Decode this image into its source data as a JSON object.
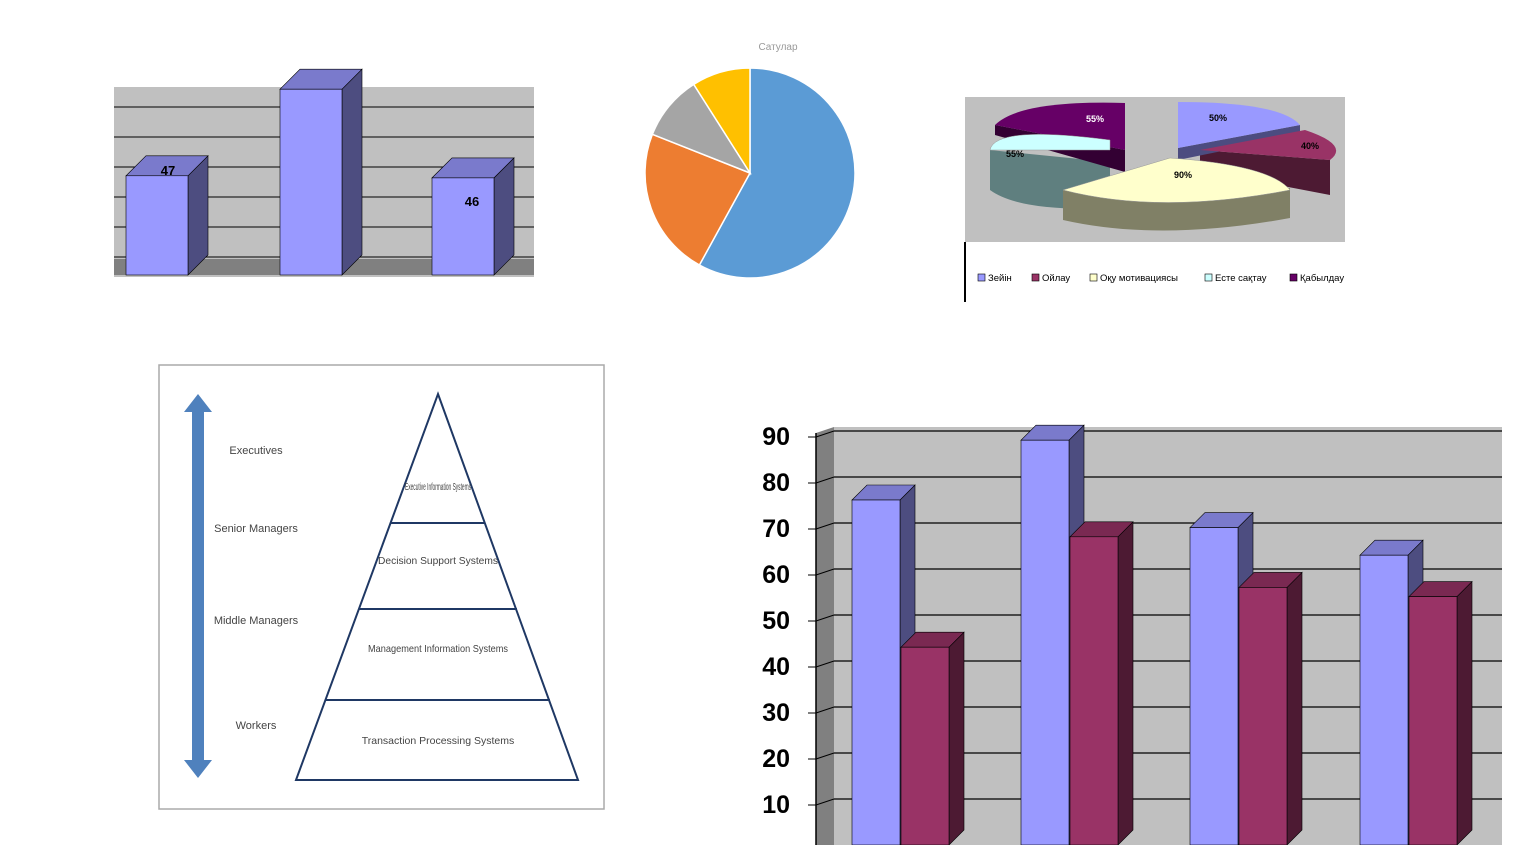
{
  "chart_data": [
    {
      "type": "bar",
      "series": [
        {
          "values": [
            47,
            88,
            46
          ]
        }
      ],
      "data_labels": [
        "47",
        "",
        "46"
      ],
      "style": "3d-column",
      "grid": true
    },
    {
      "type": "pie",
      "title": "Сатулар",
      "slices": [
        {
          "value": 58,
          "color": "#5b9bd5"
        },
        {
          "value": 23,
          "color": "#ed7d31"
        },
        {
          "value": 10,
          "color": "#a5a5a5"
        },
        {
          "value": 9,
          "color": "#ffc000"
        }
      ]
    },
    {
      "type": "pie",
      "style": "3d-exploded",
      "categories": [
        "Зейін",
        "Ойлау",
        "Оқу мотивациясы",
        "Есте сақтау",
        "Қабылдау"
      ],
      "values": [
        50,
        40,
        90,
        55,
        55
      ],
      "data_labels": [
        "50%",
        "40%",
        "90%",
        "55%",
        "55%"
      ],
      "colors": [
        "#9999ff",
        "#993366",
        "#ffffcc",
        "#ccffff",
        "#660066"
      ],
      "legend": "bottom"
    },
    {
      "type": "bar",
      "style": "3d-column",
      "categories": [
        "",
        "",
        "",
        ""
      ],
      "series": [
        {
          "values": [
            75,
            88,
            69,
            63
          ],
          "color": "#9999ff"
        },
        {
          "values": [
            43,
            67,
            56,
            54
          ],
          "color": "#993366"
        }
      ],
      "yticks": [
        "90",
        "80",
        "70",
        "60",
        "50",
        "40",
        "30",
        "20",
        "10"
      ],
      "ylim": [
        0,
        90
      ],
      "grid": true
    }
  ],
  "diagram": {
    "levels": [
      "Executives",
      "Senior Managers",
      "Middle Managers",
      "Workers"
    ],
    "systems": [
      "Executive Information Systems",
      "Decision Support Systems",
      "Management Information Systems",
      "Transaction Processing Systems"
    ]
  },
  "colors": {
    "blue_bar": "#9999ff",
    "maroon_bar": "#993366",
    "arrow": "#4f81bd",
    "plot_bg": "#c0c0c0"
  }
}
